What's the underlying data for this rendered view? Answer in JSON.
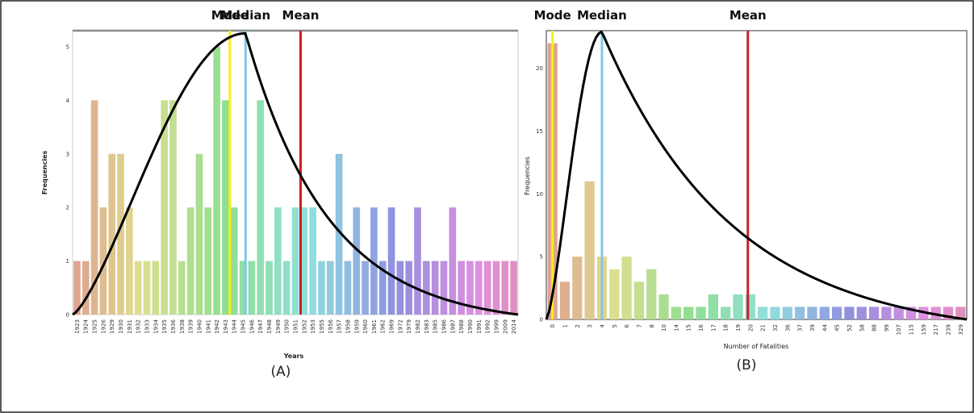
{
  "chart_data": [
    {
      "type": "bar",
      "panel_label": "(A)",
      "xlabel": "Years",
      "ylabel": "Frequencies",
      "ylim": [
        0,
        5.3
      ],
      "yticks": [
        "0",
        "1",
        "2",
        "3",
        "4",
        "5"
      ],
      "categories": [
        "1923",
        "1924",
        "1925",
        "1926",
        "1929",
        "1930",
        "1931",
        "1932",
        "1933",
        "1934",
        "1935",
        "1936",
        "1938",
        "1939",
        "1940",
        "1941",
        "1942",
        "1943",
        "1944",
        "1945",
        "1946",
        "1947",
        "1948",
        "1949",
        "1950",
        "1951",
        "1952",
        "1953",
        "1955",
        "1956",
        "1957",
        "1958",
        "1959",
        "1960",
        "1961",
        "1962",
        "1969",
        "1972",
        "1979",
        "1982",
        "1983",
        "1985",
        "1986",
        "1987",
        "1988",
        "1990",
        "1991",
        "1992",
        "1999",
        "2009",
        "2014"
      ],
      "values": [
        1,
        1,
        4,
        2,
        3,
        3,
        2,
        1,
        1,
        1,
        4,
        4,
        1,
        2,
        3,
        2,
        5,
        4,
        2,
        1,
        1,
        4,
        1,
        2,
        1,
        2,
        2,
        2,
        1,
        1,
        3,
        1,
        2,
        1,
        2,
        1,
        2,
        1,
        1,
        2,
        1,
        1,
        1,
        2,
        1,
        1,
        1,
        1,
        1,
        1,
        1
      ],
      "vertical_lines": [
        {
          "label": "Mode",
          "category_index": 17.5,
          "color": "#f7f01a"
        },
        {
          "label": "Median",
          "category_index": 19.3,
          "color": "#7ec8ea"
        },
        {
          "label": "Mean",
          "category_index": 25.6,
          "color": "#cc1f1f"
        }
      ],
      "fit_curve": {
        "peak_index": 19.3,
        "peak_value": 5.25,
        "color": "#000000"
      }
    },
    {
      "type": "bar",
      "panel_label": "(B)",
      "xlabel": "Number of Fatalities",
      "ylabel": "Frequencies",
      "ylim": [
        0,
        23
      ],
      "yticks": [
        "0",
        "5",
        "10",
        "15",
        "20"
      ],
      "categories": [
        "0",
        "1",
        "2",
        "3",
        "4",
        "5",
        "6",
        "7",
        "8",
        "10",
        "14",
        "15",
        "16",
        "17",
        "18",
        "19",
        "20",
        "21",
        "32",
        "36",
        "37",
        "39",
        "44",
        "45",
        "52",
        "58",
        "88",
        "99",
        "107",
        "115",
        "159",
        "217",
        "239",
        "329"
      ],
      "values": [
        22,
        3,
        5,
        11,
        5,
        4,
        5,
        3,
        4,
        2,
        1,
        1,
        1,
        2,
        1,
        2,
        2,
        1,
        1,
        1,
        1,
        1,
        1,
        1,
        1,
        1,
        1,
        1,
        1,
        1,
        1,
        1,
        1,
        1
      ],
      "vertical_lines": [
        {
          "label": "Mode",
          "category_index": 0,
          "color": "#f7f01a"
        },
        {
          "label": "Median",
          "category_index": 4,
          "color": "#7ec8ea"
        },
        {
          "label": "Mean",
          "category_index": 15.8,
          "color": "#cc1f1f"
        }
      ],
      "fit_curve": {
        "peak_index": 4,
        "peak_value": 22.9,
        "color": "#000000"
      }
    }
  ]
}
